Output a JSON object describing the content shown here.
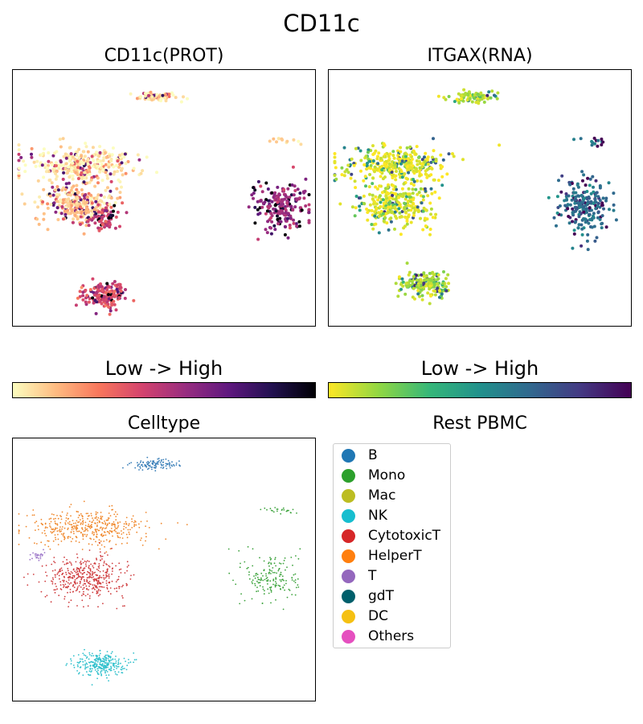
{
  "figure": {
    "title": "CD11c"
  },
  "chart_data": [
    {
      "type": "scatter",
      "title": "CD11c(PROT)",
      "colormap": "magma_r",
      "point_color_by": "expression level (0 = low, 1 = high)",
      "clusters": [
        {
          "name": "B",
          "cx": 0.48,
          "cy": 0.895,
          "sx": 0.07,
          "sy": 0.02,
          "n": 70,
          "level": 0.06
        },
        {
          "name": "HelperT",
          "cx": 0.22,
          "cy": 0.63,
          "sx": 0.19,
          "sy": 0.07,
          "n": 320,
          "level": 0.05
        },
        {
          "name": "CytotoxicT",
          "cx": 0.22,
          "cy": 0.47,
          "sx": 0.13,
          "sy": 0.08,
          "n": 260,
          "level": 0.12
        },
        {
          "name": "CytotoxicT-hi",
          "cx": 0.3,
          "cy": 0.42,
          "sx": 0.05,
          "sy": 0.05,
          "n": 70,
          "level": 0.45
        },
        {
          "name": "Mono",
          "cx": 0.89,
          "cy": 0.46,
          "sx": 0.09,
          "sy": 0.1,
          "n": 200,
          "level": 0.55
        },
        {
          "name": "Mono-small",
          "cx": 0.89,
          "cy": 0.72,
          "sx": 0.07,
          "sy": 0.02,
          "n": 12,
          "level": 0.08
        },
        {
          "name": "NK",
          "cx": 0.3,
          "cy": 0.12,
          "sx": 0.08,
          "sy": 0.05,
          "n": 170,
          "level": 0.4
        }
      ]
    },
    {
      "type": "scatter",
      "title": "ITGAX(RNA)",
      "colormap": "viridis_r",
      "point_color_by": "expression level (0 = low, 1 = high)",
      "clusters": [
        {
          "name": "B",
          "cx": 0.48,
          "cy": 0.895,
          "sx": 0.08,
          "sy": 0.025,
          "n": 90,
          "level": 0.1
        },
        {
          "name": "HelperT",
          "cx": 0.22,
          "cy": 0.63,
          "sx": 0.19,
          "sy": 0.07,
          "n": 340,
          "level": 0.02
        },
        {
          "name": "CytotoxicT",
          "cx": 0.22,
          "cy": 0.47,
          "sx": 0.13,
          "sy": 0.08,
          "n": 290,
          "level": 0.04
        },
        {
          "name": "Mono",
          "cx": 0.85,
          "cy": 0.47,
          "sx": 0.08,
          "sy": 0.1,
          "n": 220,
          "level": 0.62
        },
        {
          "name": "Mono-small",
          "cx": 0.89,
          "cy": 0.72,
          "sx": 0.07,
          "sy": 0.02,
          "n": 14,
          "level": 0.6
        },
        {
          "name": "NK",
          "cx": 0.32,
          "cy": 0.16,
          "sx": 0.08,
          "sy": 0.05,
          "n": 190,
          "level": 0.12
        }
      ]
    },
    {
      "type": "scatter",
      "title": "Celltype",
      "point_color_by": "cell type",
      "clusters": [
        {
          "name": "B",
          "cx": 0.47,
          "cy": 0.9,
          "sx": 0.08,
          "sy": 0.02,
          "n": 110,
          "color": "#3a7fb8"
        },
        {
          "name": "HelperT",
          "cx": 0.25,
          "cy": 0.66,
          "sx": 0.2,
          "sy": 0.065,
          "n": 420,
          "color": "#f0892e"
        },
        {
          "name": "CytotoxicT",
          "cx": 0.24,
          "cy": 0.47,
          "sx": 0.13,
          "sy": 0.08,
          "n": 420,
          "color": "#cf3d3f"
        },
        {
          "name": "T",
          "cx": 0.08,
          "cy": 0.55,
          "sx": 0.025,
          "sy": 0.02,
          "n": 25,
          "color": "#9e78c9"
        },
        {
          "name": "Mono",
          "cx": 0.86,
          "cy": 0.47,
          "sx": 0.09,
          "sy": 0.1,
          "n": 170,
          "color": "#3da33d"
        },
        {
          "name": "Mono-small",
          "cx": 0.89,
          "cy": 0.725,
          "sx": 0.07,
          "sy": 0.015,
          "n": 24,
          "color": "#3da33d"
        },
        {
          "name": "NK",
          "cx": 0.29,
          "cy": 0.14,
          "sx": 0.08,
          "sy": 0.045,
          "n": 280,
          "color": "#2fc0cc"
        }
      ]
    }
  ],
  "colorbars": [
    {
      "label": "Low  ->  High",
      "colormap": "magma_r",
      "stops": [
        "#fcfdbf",
        "#febb81",
        "#f8765c",
        "#d3436e",
        "#982d80",
        "#5f187f",
        "#221150",
        "#000004"
      ]
    },
    {
      "label": "Low  ->  High",
      "colormap": "viridis_r",
      "stops": [
        "#fde725",
        "#90d743",
        "#35b779",
        "#21918c",
        "#31688e",
        "#443983",
        "#440154"
      ]
    }
  ],
  "legend": {
    "title": "Rest PBMC",
    "items": [
      {
        "label": "B",
        "color": "#1f77b4"
      },
      {
        "label": "Mono",
        "color": "#2ca02c"
      },
      {
        "label": "Mac",
        "color": "#bcbd22"
      },
      {
        "label": "NK",
        "color": "#17becf"
      },
      {
        "label": "CytotoxicT",
        "color": "#d62728"
      },
      {
        "label": "HelperT",
        "color": "#ff7f0e"
      },
      {
        "label": "T",
        "color": "#9467bd"
      },
      {
        "label": "gdT",
        "color": "#005f6b"
      },
      {
        "label": "DC",
        "color": "#f5c012"
      },
      {
        "label": "Others",
        "color": "#e54fbf"
      }
    ]
  }
}
